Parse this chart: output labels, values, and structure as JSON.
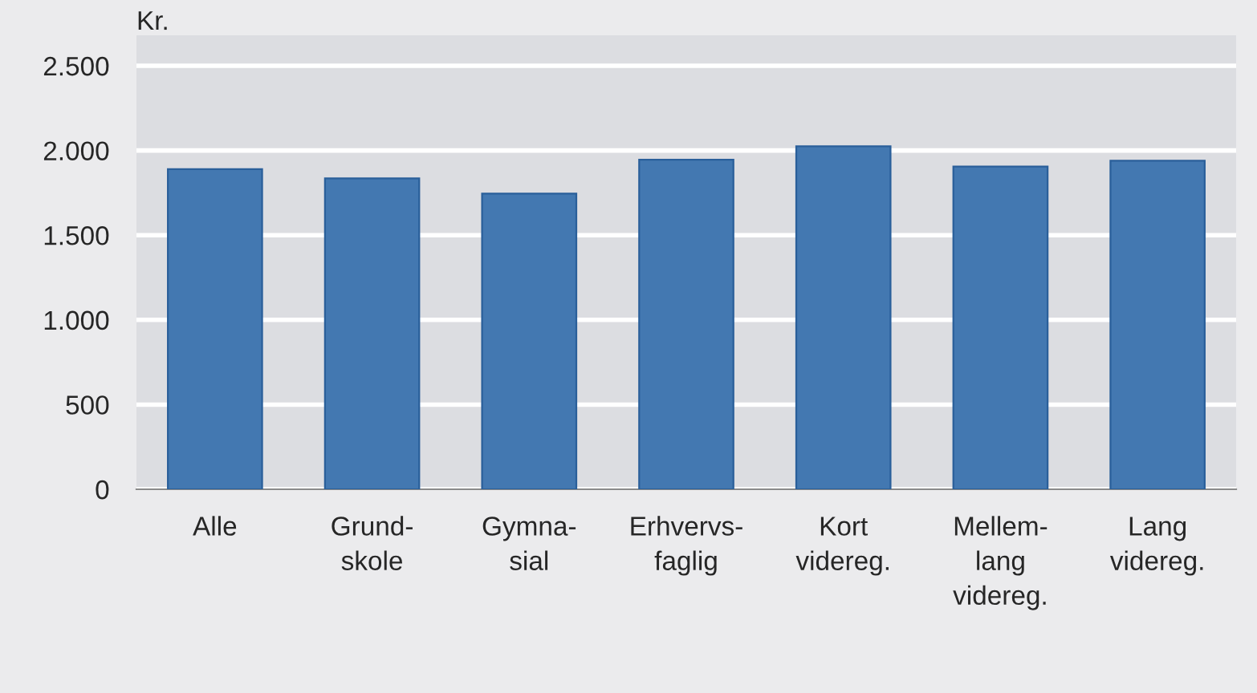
{
  "chart_data": {
    "type": "bar",
    "ylabel": "Kr.",
    "categories": [
      "Alle",
      "Grund-\nskole",
      "Gymna-\nsial",
      "Erhvervs-\nfaglig",
      "Kort\nvidereg.",
      "Mellem-\nlang\nvidereg.",
      "Lang\nvidereg."
    ],
    "values": [
      1890,
      1835,
      1745,
      1945,
      2025,
      1905,
      1940
    ],
    "color": "#4378b1",
    "ylim": [
      0,
      2680
    ],
    "yticks": [
      {
        "value": 0,
        "label": "0"
      },
      {
        "value": 500,
        "label": "500"
      },
      {
        "value": 1000,
        "label": "1.000"
      },
      {
        "value": 1500,
        "label": "1.500"
      },
      {
        "value": 2000,
        "label": "2.000"
      },
      {
        "value": 2500,
        "label": "2.500"
      }
    ],
    "grid": "y"
  }
}
